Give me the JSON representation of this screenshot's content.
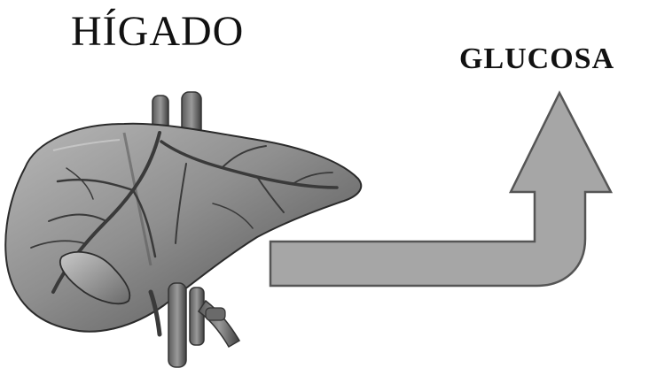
{
  "labels": {
    "organ": "HÍGADO",
    "product": "GLUCOSA"
  },
  "icons": {
    "organ_illustration": "liver-icon",
    "flow_arrow": "upward-bent-arrow-icon"
  },
  "colors": {
    "background": "#ffffff",
    "text": "#111111",
    "arrow_fill": "#a6a6a6",
    "arrow_stroke": "#555555",
    "liver_light": "#9a9a9a",
    "liver_dark": "#3a3a3a"
  }
}
